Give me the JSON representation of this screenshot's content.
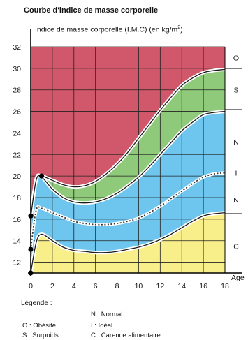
{
  "chart_data": {
    "type": "area",
    "title": "Courbe d'indice de masse corporelle",
    "ylabel": "Indice de masse corporelle (I.M.C) (en kg/m",
    "ylabel_sup": "2",
    "ylabel_close": ")",
    "xlabel": "Age",
    "xlim": [
      0,
      18
    ],
    "ylim": [
      11,
      32
    ],
    "x_ticks": [
      0,
      2,
      4,
      6,
      8,
      10,
      12,
      14,
      16,
      18
    ],
    "y_ticks": [
      12,
      14,
      16,
      18,
      20,
      22,
      24,
      26,
      28,
      30,
      32
    ],
    "grid": true,
    "x": [
      0,
      0.5,
      1,
      2,
      3,
      4,
      5,
      6,
      7,
      8,
      9,
      10,
      11,
      12,
      13,
      14,
      15,
      16,
      17,
      18
    ],
    "curves": {
      "lower": [
        11.0,
        13.8,
        14.6,
        14.0,
        13.4,
        13.1,
        13.0,
        12.9,
        12.9,
        13.0,
        13.2,
        13.4,
        13.7,
        14.1,
        14.6,
        15.2,
        15.8,
        16.3,
        16.5,
        16.6
      ],
      "median": [
        13.2,
        16.8,
        17.0,
        16.6,
        16.2,
        15.8,
        15.6,
        15.5,
        15.5,
        15.6,
        15.8,
        16.1,
        16.6,
        17.2,
        17.9,
        18.6,
        19.3,
        19.9,
        20.2,
        20.3
      ],
      "upper_normal": [
        16.2,
        19.6,
        19.9,
        18.8,
        18.0,
        17.6,
        17.5,
        17.6,
        17.9,
        18.4,
        19.1,
        19.9,
        20.9,
        22.0,
        23.1,
        24.2,
        25.0,
        25.7,
        25.9,
        26.0
      ],
      "upper_overweight": [
        16.2,
        19.7,
        20.0,
        19.6,
        19.2,
        19.0,
        19.1,
        19.5,
        20.2,
        21.1,
        22.2,
        23.5,
        24.8,
        26.1,
        27.3,
        28.4,
        29.1,
        29.6,
        29.8,
        29.9
      ]
    },
    "markers": [
      {
        "x": 0,
        "y": 11.0
      },
      {
        "x": 0,
        "y": 13.2
      },
      {
        "x": 0,
        "y": 16.3
      },
      {
        "x": 1,
        "y": 20.0
      }
    ],
    "zones": [
      {
        "label": "O",
        "y": 31.0
      },
      {
        "label": "S",
        "y": 28.0
      },
      {
        "label": "N",
        "y": 23.2
      },
      {
        "label": "I",
        "y": 20.3
      },
      {
        "label": "N",
        "y": 17.8
      },
      {
        "label": "C",
        "y": 13.5
      }
    ],
    "colors": {
      "obese": "#d0586a",
      "overweight": "#8fc97a",
      "normal": "#6ec6ee",
      "deficiency": "#f8ee8a",
      "grid": "#222222"
    }
  },
  "legend": {
    "title": "Légende :",
    "normal": "N : Normal",
    "obese": "O : Obésité",
    "ideal": "I : Idéal",
    "overweight": "S : Surpoids",
    "deficiency": "C : Carence alimentaire"
  }
}
